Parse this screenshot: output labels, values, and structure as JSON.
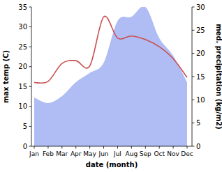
{
  "chart_data": {
    "type": "line",
    "x_label": "date (month)",
    "y_label": "max temp (C)",
    "y2_label": "med. precipitation (kg/m2)",
    "categories": [
      "Jan",
      "Feb",
      "Mar",
      "Apr",
      "May",
      "Jun",
      "Jul",
      "Aug",
      "Sep",
      "Oct",
      "Nov",
      "Dec"
    ],
    "series": [
      {
        "type": "area",
        "axis": "y2",
        "color": "#b0bdf5",
        "values": [
          10.5,
          9.3,
          10.8,
          13.8,
          15.8,
          18,
          27,
          27.9,
          30,
          23.3,
          19.5,
          13.8
        ]
      },
      {
        "type": "line",
        "color": "#c95050",
        "values": [
          16,
          16.3,
          20.8,
          21.5,
          20.2,
          32.5,
          27.2,
          27.7,
          26.8,
          25,
          22,
          17.3
        ]
      }
    ],
    "ylim": [
      0,
      35
    ],
    "yticks": [
      0,
      5,
      10,
      15,
      20,
      25,
      30,
      35
    ],
    "y2lim": [
      0,
      30
    ],
    "y2ticks": [
      0,
      5,
      10,
      15,
      20,
      25,
      30
    ],
    "grid": false
  }
}
